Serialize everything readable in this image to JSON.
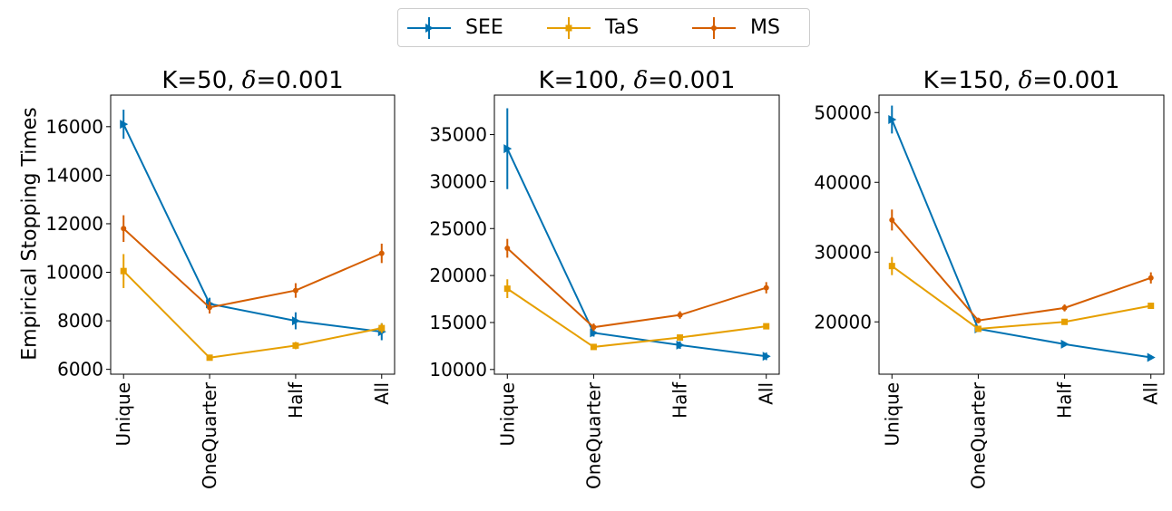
{
  "legend": {
    "items": [
      {
        "label": "SEE",
        "color": "#0072b2",
        "marker": "triangle-right"
      },
      {
        "label": "TaS",
        "color": "#e69f00",
        "marker": "square"
      },
      {
        "label": "MS",
        "color": "#d55e00",
        "marker": "point"
      }
    ]
  },
  "ylabel": "Empirical Stopping Times",
  "chart_data": [
    {
      "type": "line",
      "title": "K=50, δ=0.001",
      "title_parts": {
        "pre": "K=50, ",
        "sym": "δ",
        "post": "=0.001"
      },
      "categories": [
        "Unique",
        "OneQuarter",
        "Half",
        "All"
      ],
      "ylim": [
        5800,
        17300
      ],
      "yticks": [
        6000,
        8000,
        10000,
        12000,
        14000,
        16000
      ],
      "ytick_labels": [
        "6000",
        "8000",
        "10000",
        "12000",
        "14000",
        "16000"
      ],
      "series": [
        {
          "name": "SEE",
          "values": [
            16100,
            8700,
            8000,
            7550
          ],
          "errors": [
            600,
            250,
            350,
            350
          ]
        },
        {
          "name": "TaS",
          "values": [
            10050,
            6480,
            6980,
            7700
          ],
          "errors": [
            700,
            120,
            150,
            200
          ]
        },
        {
          "name": "MS",
          "values": [
            11800,
            8550,
            9250,
            10780
          ],
          "errors": [
            550,
            250,
            300,
            400
          ]
        }
      ]
    },
    {
      "type": "line",
      "title": "K=100, δ=0.001",
      "title_parts": {
        "pre": "K=100, ",
        "sym": "δ",
        "post": "=0.001"
      },
      "categories": [
        "Unique",
        "OneQuarter",
        "Half",
        "All"
      ],
      "ylim": [
        9500,
        39200
      ],
      "yticks": [
        10000,
        15000,
        20000,
        25000,
        30000,
        35000
      ],
      "ytick_labels": [
        "10000",
        "15000",
        "20000",
        "25000",
        "30000",
        "35000"
      ],
      "series": [
        {
          "name": "SEE",
          "values": [
            33500,
            13900,
            12600,
            11400
          ],
          "errors": [
            4300,
            400,
            400,
            400
          ]
        },
        {
          "name": "TaS",
          "values": [
            18600,
            12400,
            13400,
            14600
          ],
          "errors": [
            1000,
            250,
            300,
            300
          ]
        },
        {
          "name": "MS",
          "values": [
            22900,
            14500,
            15800,
            18700
          ],
          "errors": [
            1000,
            400,
            400,
            600
          ]
        }
      ]
    },
    {
      "type": "line",
      "title": "K=150, δ=0.001",
      "title_parts": {
        "pre": "K=150, ",
        "sym": "δ",
        "post": "=0.001"
      },
      "categories": [
        "Unique",
        "OneQuarter",
        "Half",
        "All"
      ],
      "ylim": [
        12500,
        52500
      ],
      "yticks": [
        20000,
        30000,
        40000,
        50000
      ],
      "ytick_labels": [
        "20000",
        "30000",
        "40000",
        "50000"
      ],
      "series": [
        {
          "name": "SEE",
          "values": [
            49000,
            19000,
            16800,
            14900
          ],
          "errors": [
            2000,
            400,
            300,
            300
          ]
        },
        {
          "name": "TaS",
          "values": [
            28000,
            19000,
            20000,
            22300
          ],
          "errors": [
            1300,
            300,
            300,
            400
          ]
        },
        {
          "name": "MS",
          "values": [
            34600,
            20200,
            22000,
            26300
          ],
          "errors": [
            1500,
            400,
            500,
            800
          ]
        }
      ]
    }
  ]
}
